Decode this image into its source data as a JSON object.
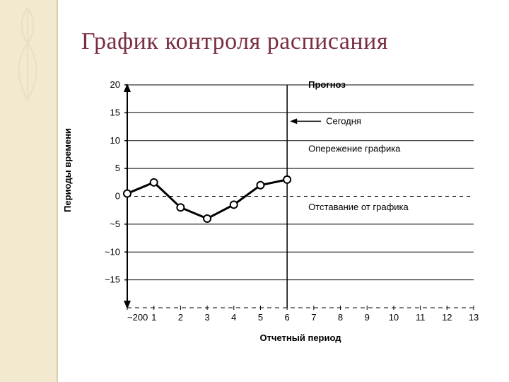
{
  "title": "График контроля расписания",
  "ylabel": "Периоды времени",
  "xlabel": "Отчетный период",
  "chart": {
    "type": "line",
    "background_color": "#ffffff",
    "axis_color": "#000000",
    "grid_color": "#000000",
    "line_color": "#000000",
    "line_width": 3,
    "marker_fill": "#ffffff",
    "marker_stroke": "#000000",
    "marker_radius": 5,
    "xlim": [
      0,
      13
    ],
    "ylim": [
      -20,
      20
    ],
    "ytick_step": 5,
    "x_first_label": "~200",
    "yticks": [
      20,
      15,
      10,
      5,
      0,
      -5,
      -10,
      -15
    ],
    "yticks_labels": [
      "20",
      "15",
      "10",
      "5",
      "0",
      "~5",
      "~10",
      "~15"
    ],
    "xticks": [
      0,
      1,
      2,
      3,
      4,
      5,
      6,
      7,
      8,
      9,
      10,
      11,
      12,
      13
    ],
    "data_x": [
      0,
      1,
      2,
      3,
      4,
      5,
      6
    ],
    "data_y": [
      0.5,
      2.5,
      -2.0,
      -4.0,
      -1.5,
      2.0,
      3.0
    ],
    "today_x": 6,
    "annotations": {
      "forecast": "Прогноз",
      "today": "Сегодня",
      "ahead": "Опережение графика",
      "behind": "Отставание от графика"
    },
    "title_fontsize": 34,
    "title_color": "#7a2f40",
    "label_fontsize": 13,
    "annot_fontsize": 13
  },
  "decor": {
    "strip_color": "#f2e9cf",
    "leaf_stroke": "#e9e0c3"
  }
}
